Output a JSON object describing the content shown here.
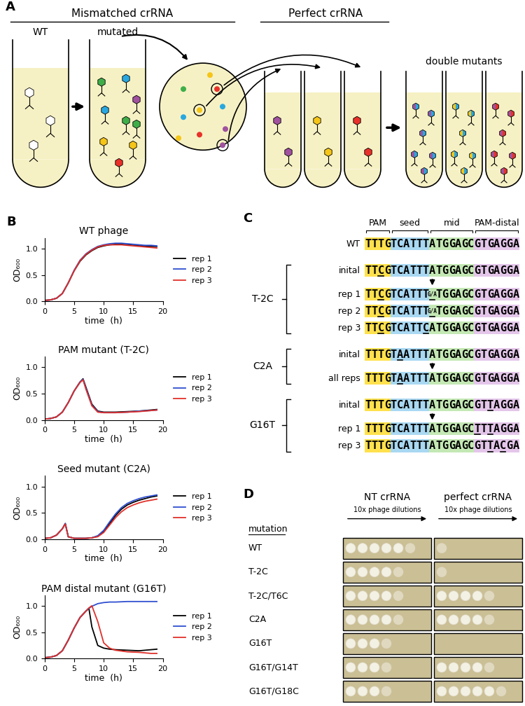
{
  "panel_a": {
    "label": "A",
    "headers": [
      "Mismatched crRNA",
      "Perfect crRNA"
    ],
    "tubes": [
      "WT",
      "mutated",
      "double mutants"
    ]
  },
  "panel_b": {
    "label": "B"
  },
  "chart_data": [
    {
      "type": "line",
      "title": "WT phage",
      "xlabel": "time  (h)",
      "ylabel": "OD₆₀₀",
      "x": [
        0,
        1,
        2,
        3,
        4,
        5,
        6,
        7,
        8,
        9,
        10,
        11,
        12,
        13,
        14,
        15,
        16,
        17,
        18,
        19
      ],
      "series": [
        {
          "name": "rep 1",
          "color": "#000000",
          "values": [
            0.02,
            0.03,
            0.06,
            0.15,
            0.35,
            0.58,
            0.76,
            0.88,
            0.96,
            1.02,
            1.05,
            1.07,
            1.08,
            1.08,
            1.07,
            1.06,
            1.05,
            1.05,
            1.04,
            1.04
          ]
        },
        {
          "name": "rep 2",
          "color": "#2f4fd0",
          "values": [
            0.02,
            0.03,
            0.06,
            0.15,
            0.35,
            0.59,
            0.78,
            0.9,
            0.98,
            1.04,
            1.07,
            1.09,
            1.1,
            1.1,
            1.09,
            1.08,
            1.07,
            1.06,
            1.06,
            1.05
          ]
        },
        {
          "name": "rep 3",
          "color": "#e0302a",
          "values": [
            0.02,
            0.03,
            0.06,
            0.15,
            0.35,
            0.58,
            0.77,
            0.89,
            0.97,
            1.03,
            1.06,
            1.07,
            1.07,
            1.07,
            1.06,
            1.05,
            1.04,
            1.03,
            1.02,
            1.01
          ]
        }
      ],
      "xlim": [
        0,
        20
      ],
      "ylim": [
        0,
        1.2
      ],
      "xticks": [
        0,
        5,
        10,
        15,
        20
      ],
      "yticks": [
        {
          "value": 0,
          "label": "0.0"
        },
        {
          "value": 0.5,
          "label": "0.5"
        },
        {
          "value": 1,
          "label": "1.0"
        }
      ],
      "legend": "right"
    },
    {
      "type": "line",
      "title": "PAM mutant (T-2C)",
      "xlabel": "time  (h)",
      "ylabel": "OD₆₀₀",
      "x": [
        0,
        1,
        2,
        3,
        4,
        5,
        6,
        6.5,
        7,
        8,
        9,
        10,
        12,
        14,
        16,
        18,
        19
      ],
      "series": [
        {
          "name": "rep 1",
          "color": "#000000",
          "values": [
            0.02,
            0.03,
            0.06,
            0.15,
            0.33,
            0.55,
            0.72,
            0.78,
            0.62,
            0.3,
            0.17,
            0.15,
            0.15,
            0.16,
            0.17,
            0.19,
            0.2
          ]
        },
        {
          "name": "rep 2",
          "color": "#2f4fd0",
          "values": [
            0.02,
            0.03,
            0.06,
            0.15,
            0.33,
            0.55,
            0.72,
            0.77,
            0.6,
            0.28,
            0.16,
            0.14,
            0.14,
            0.15,
            0.17,
            0.18,
            0.19
          ]
        },
        {
          "name": "rep 3",
          "color": "#e0302a",
          "values": [
            0.02,
            0.03,
            0.06,
            0.15,
            0.33,
            0.55,
            0.71,
            0.76,
            0.58,
            0.27,
            0.15,
            0.14,
            0.14,
            0.15,
            0.16,
            0.18,
            0.19
          ]
        }
      ],
      "xlim": [
        0,
        20
      ],
      "ylim": [
        0,
        1.2
      ],
      "xticks": [
        0,
        5,
        10,
        15,
        20
      ],
      "yticks": [
        {
          "value": 0,
          "label": "0.0"
        },
        {
          "value": 0.5,
          "label": "0.5"
        },
        {
          "value": 1,
          "label": "1.0"
        }
      ],
      "legend": "right"
    },
    {
      "type": "line",
      "title": "Seed mutant (C2A)",
      "xlabel": "time  (h)",
      "ylabel": "OD₆₀₀",
      "x": [
        0,
        1,
        2,
        3,
        3.5,
        4,
        5,
        6,
        7,
        8,
        9,
        10,
        11,
        12,
        13,
        14,
        15,
        16,
        17,
        18,
        19
      ],
      "series": [
        {
          "name": "rep 1",
          "color": "#000000",
          "values": [
            0.02,
            0.03,
            0.08,
            0.2,
            0.3,
            0.05,
            0.02,
            0.02,
            0.02,
            0.03,
            0.06,
            0.15,
            0.3,
            0.45,
            0.57,
            0.65,
            0.7,
            0.74,
            0.77,
            0.8,
            0.82
          ]
        },
        {
          "name": "rep 2",
          "color": "#2f4fd0",
          "values": [
            0.02,
            0.03,
            0.08,
            0.2,
            0.3,
            0.05,
            0.02,
            0.02,
            0.02,
            0.03,
            0.07,
            0.17,
            0.33,
            0.48,
            0.6,
            0.68,
            0.73,
            0.77,
            0.8,
            0.82,
            0.84
          ]
        },
        {
          "name": "rep 3",
          "color": "#e0302a",
          "values": [
            0.02,
            0.03,
            0.08,
            0.2,
            0.29,
            0.05,
            0.02,
            0.02,
            0.02,
            0.03,
            0.05,
            0.13,
            0.27,
            0.41,
            0.52,
            0.6,
            0.65,
            0.69,
            0.72,
            0.74,
            0.76
          ]
        }
      ],
      "xlim": [
        0,
        20
      ],
      "ylim": [
        0,
        1.2
      ],
      "xticks": [
        0,
        5,
        10,
        15,
        20
      ],
      "yticks": [
        {
          "value": 0,
          "label": "0.0"
        },
        {
          "value": 0.5,
          "label": "0.5"
        },
        {
          "value": 1,
          "label": "1.0"
        }
      ],
      "legend": "right"
    },
    {
      "type": "line",
      "title": "PAM distal mutant (G16T)",
      "xlabel": "time  (h)",
      "ylabel": "OD₆₀₀",
      "x": [
        0,
        1,
        2,
        3,
        4,
        5,
        6,
        7,
        7.5,
        8,
        9,
        10,
        11,
        12,
        14,
        16,
        18,
        19
      ],
      "series": [
        {
          "name": "rep 1",
          "color": "#000000",
          "values": [
            0.02,
            0.03,
            0.06,
            0.15,
            0.35,
            0.58,
            0.78,
            0.9,
            0.95,
            0.6,
            0.25,
            0.2,
            0.18,
            0.17,
            0.16,
            0.15,
            0.17,
            0.18
          ]
        },
        {
          "name": "rep 2",
          "color": "#2f4fd0",
          "values": [
            0.02,
            0.03,
            0.06,
            0.15,
            0.35,
            0.58,
            0.78,
            0.9,
            0.95,
            0.99,
            1.04,
            1.06,
            1.07,
            1.07,
            1.08,
            1.08,
            1.08,
            1.08
          ]
        },
        {
          "name": "rep 3",
          "color": "#e0302a",
          "values": [
            0.02,
            0.03,
            0.06,
            0.15,
            0.35,
            0.58,
            0.78,
            0.9,
            0.96,
            1.0,
            0.7,
            0.3,
            0.2,
            0.16,
            0.13,
            0.12,
            0.1,
            0.1
          ]
        }
      ],
      "xlim": [
        0,
        20
      ],
      "ylim": [
        0,
        1.2
      ],
      "xticks": [
        0,
        5,
        10,
        15,
        20
      ],
      "yticks": [
        {
          "value": 0,
          "label": "0.0"
        },
        {
          "value": 0.5,
          "label": "0.5"
        },
        {
          "value": 1,
          "label": "1.0"
        }
      ],
      "legend": "right"
    }
  ],
  "panel_c": {
    "label": "C",
    "segments": [
      {
        "label": "PAM",
        "length": 4,
        "color": "#ffe14d"
      },
      {
        "label": "seed",
        "length": 6,
        "color": "#a9d8f2"
      },
      {
        "label": "mid",
        "length": 7,
        "color": "#c4e8b4"
      },
      {
        "label": "PAM-distal",
        "length": 7,
        "color": "#e4c6ea"
      }
    ],
    "wild_type": {
      "label": "WT",
      "tokens": [
        "T",
        "T",
        "T",
        "G",
        "T",
        "C",
        "A",
        "T",
        "T",
        "T",
        "A",
        "T",
        "G",
        "G",
        "A",
        "G",
        "C",
        "G",
        "T",
        "G",
        "A",
        "G",
        "G",
        "A"
      ],
      "underlined": []
    },
    "groups": [
      {
        "label": "T-2C",
        "initial": {
          "label": "inital",
          "tokens": [
            "T",
            "T",
            "C",
            "G",
            "T",
            "C",
            "A",
            "T",
            "T",
            "T",
            "A",
            "T",
            "G",
            "G",
            "A",
            "G",
            "C",
            "G",
            "T",
            "G",
            "A",
            "G",
            "G",
            "A"
          ],
          "underlined": [
            2
          ]
        },
        "replicates": [
          {
            "label": "rep 1",
            "tokens": [
              "T",
              "T",
              "C",
              "G",
              "T",
              "C",
              "A",
              "T",
              "T",
              "T",
              "G/A",
              "T",
              "G",
              "G",
              "A",
              "G",
              "C",
              "G",
              "T",
              "G",
              "A",
              "G",
              "G",
              "A"
            ],
            "underlined": [
              2,
              10
            ]
          },
          {
            "label": "rep 2",
            "tokens": [
              "T",
              "T",
              "C",
              "G",
              "T",
              "C",
              "A",
              "T",
              "T",
              "T",
              "G/A",
              "T",
              "G",
              "G",
              "A",
              "G",
              "C",
              "G",
              "T",
              "G",
              "A",
              "G",
              "G",
              "A"
            ],
            "underlined": [
              2,
              10
            ]
          },
          {
            "label": "rep 3",
            "tokens": [
              "T",
              "T",
              "C",
              "G",
              "T",
              "C",
              "A",
              "T",
              "T",
              "C",
              "A",
              "T",
              "G",
              "G",
              "A",
              "G",
              "C",
              "G",
              "T",
              "G",
              "A",
              "G",
              "G",
              "A"
            ],
            "underlined": [
              2,
              9
            ]
          }
        ]
      },
      {
        "label": "C2A",
        "initial": {
          "label": "inital",
          "tokens": [
            "T",
            "T",
            "T",
            "G",
            "T",
            "A",
            "A",
            "T",
            "T",
            "T",
            "A",
            "T",
            "G",
            "G",
            "A",
            "G",
            "C",
            "G",
            "T",
            "G",
            "A",
            "G",
            "G",
            "A"
          ],
          "underlined": [
            5
          ]
        },
        "replicates": [
          {
            "label": "all reps",
            "tokens": [
              "T",
              "T",
              "T",
              "G",
              "T",
              "A",
              "A",
              "T",
              "T",
              "T",
              "A",
              "T",
              "G",
              "G",
              "A",
              "G",
              "C",
              "G",
              "T",
              "G",
              "A",
              "G",
              "G",
              "A"
            ],
            "underlined": [
              5
            ]
          }
        ]
      },
      {
        "label": "G16T",
        "initial": {
          "label": "inital",
          "tokens": [
            "T",
            "T",
            "T",
            "G",
            "T",
            "C",
            "A",
            "T",
            "T",
            "T",
            "A",
            "T",
            "G",
            "G",
            "A",
            "G",
            "C",
            "G",
            "T",
            "T",
            "A",
            "G",
            "G",
            "A"
          ],
          "underlined": [
            19
          ]
        },
        "replicates": [
          {
            "label": "rep 1",
            "tokens": [
              "T",
              "T",
              "T",
              "G",
              "T",
              "C",
              "A",
              "T",
              "T",
              "T",
              "A",
              "T",
              "G",
              "G",
              "A",
              "G",
              "C",
              "T",
              "T",
              "T",
              "A",
              "G",
              "G",
              "A"
            ],
            "underlined": [
              17,
              19
            ]
          },
          {
            "label": "rep 3",
            "tokens": [
              "T",
              "T",
              "T",
              "G",
              "T",
              "C",
              "A",
              "T",
              "T",
              "T",
              "A",
              "T",
              "G",
              "G",
              "A",
              "G",
              "C",
              "G",
              "T",
              "T",
              "A",
              "C",
              "G",
              "A"
            ],
            "underlined": [
              19,
              21
            ]
          }
        ]
      }
    ]
  },
  "panel_d": {
    "label": "D",
    "column_header": "mutation",
    "conditions": [
      "NT crRNA",
      "perfect crRNA"
    ],
    "dilution_label": "10x phage dilutions",
    "rows": [
      {
        "mutation": "WT",
        "spots": [
          6,
          1
        ]
      },
      {
        "mutation": "T-2C",
        "spots": [
          5,
          1
        ]
      },
      {
        "mutation": "T-2C/T6C",
        "spots": [
          5,
          5
        ]
      },
      {
        "mutation": "C2A",
        "spots": [
          5,
          5
        ]
      },
      {
        "mutation": "G16T",
        "spots": [
          4,
          0
        ]
      },
      {
        "mutation": "G16T/G14T",
        "spots": [
          4,
          5
        ]
      },
      {
        "mutation": "G16T/G18C",
        "spots": [
          4,
          6
        ]
      }
    ]
  }
}
